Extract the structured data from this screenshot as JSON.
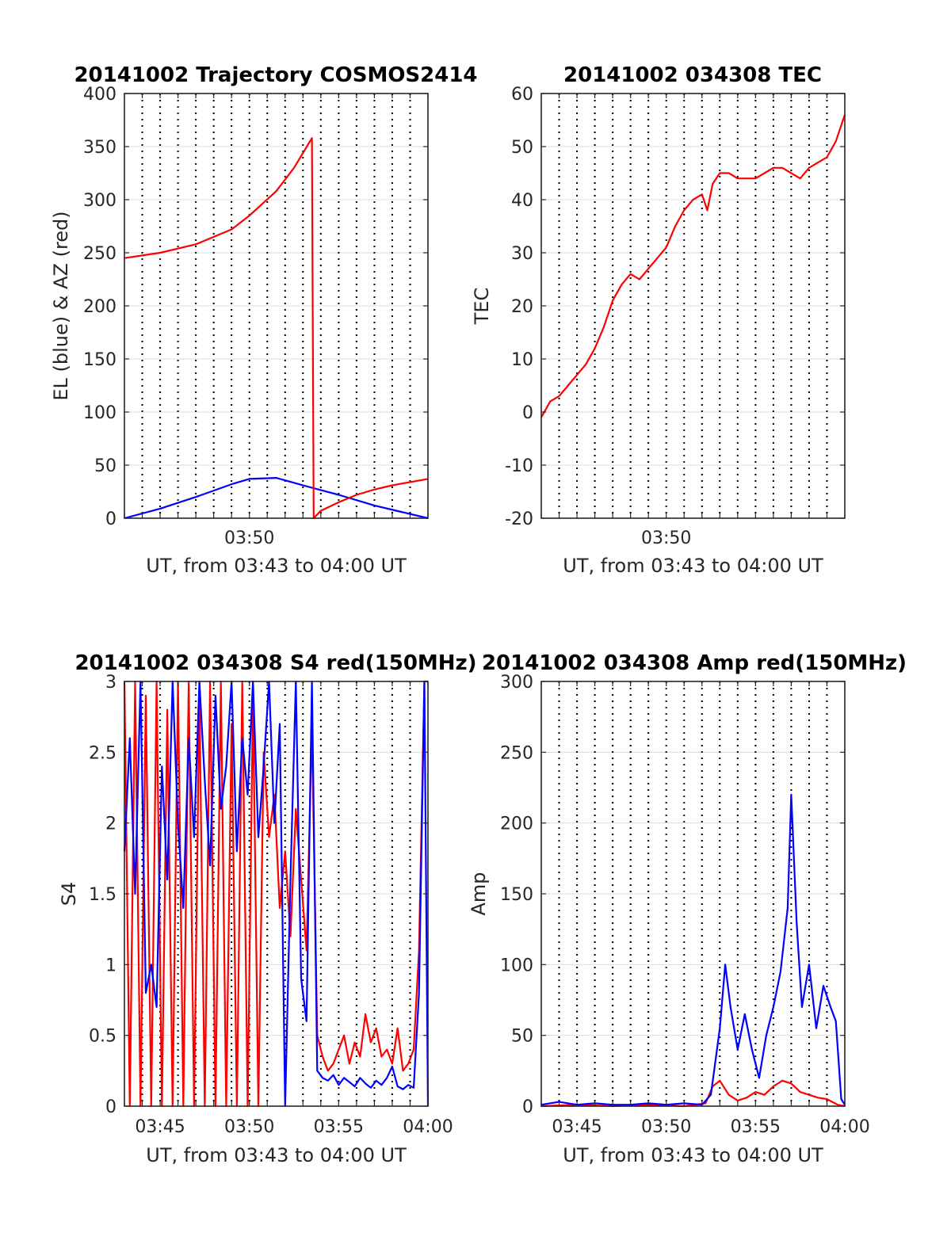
{
  "colors": {
    "el": "#0000ff",
    "az": "#ff0000",
    "tec": "#ff0000",
    "s4_red": "#ff0000",
    "s4_blue": "#0000ff",
    "amp_red": "#ff0000",
    "amp_blue": "#0000ff",
    "axis": "#262626",
    "grid": "#dcdcdc"
  },
  "chart_data": [
    {
      "id": "trajectory",
      "type": "line",
      "title": "20141002 Trajectory COSMOS2414",
      "xlabel": "UT, from 03:43 to 04:00 UT",
      "ylabel": "EL (blue) & AZ (red)",
      "xlim": [
        0,
        17
      ],
      "ylim": [
        0,
        400
      ],
      "xticks": [
        7
      ],
      "xticklabels": [
        "03:50"
      ],
      "yticks": [
        0,
        50,
        100,
        150,
        200,
        250,
        300,
        350,
        400
      ],
      "grid": "dotted vertical minute lines, light horizontal lines",
      "series": [
        {
          "key": "el",
          "x": [
            0,
            2,
            4,
            6,
            7,
            8.5,
            10,
            12,
            14,
            15.5,
            17
          ],
          "y": [
            0,
            9,
            20,
            32,
            37,
            38,
            31,
            22,
            12,
            6,
            0
          ]
        },
        {
          "key": "az",
          "x": [
            0,
            2,
            4,
            6,
            7,
            8.5,
            9.5,
            10.5,
            10.6,
            11,
            12,
            13,
            14,
            15,
            16,
            17
          ],
          "y": [
            245,
            250,
            258,
            272,
            285,
            308,
            330,
            358,
            0,
            7,
            15,
            22,
            27,
            31,
            34,
            37
          ]
        }
      ]
    },
    {
      "id": "tec",
      "type": "line",
      "title": "20141002 034308 TEC",
      "xlabel": "UT, from 03:43 to 04:00 UT",
      "ylabel": "TEC",
      "xlim": [
        0,
        17
      ],
      "ylim": [
        -20,
        60
      ],
      "xticks": [
        7
      ],
      "xticklabels": [
        "03:50"
      ],
      "yticks": [
        -20,
        -10,
        0,
        10,
        20,
        30,
        40,
        50,
        60
      ],
      "series": [
        {
          "key": "tec",
          "x": [
            0,
            0.5,
            1,
            1.5,
            2,
            2.5,
            3,
            3.5,
            4,
            4.5,
            5,
            5.5,
            6,
            6.5,
            7,
            7.5,
            8,
            8.5,
            9,
            9.3,
            9.6,
            10,
            10.5,
            11,
            11.5,
            12,
            12.5,
            13,
            13.5,
            14,
            14.5,
            15,
            15.5,
            16,
            16.5,
            17
          ],
          "y": [
            -1,
            2,
            3,
            5,
            7,
            9,
            12,
            16,
            21,
            24,
            26,
            25,
            27,
            29,
            31,
            35,
            38,
            40,
            41,
            38,
            43,
            45,
            45,
            44,
            44,
            44,
            45,
            46,
            46,
            45,
            44,
            46,
            47,
            48,
            51,
            56
          ]
        }
      ]
    },
    {
      "id": "s4",
      "type": "line",
      "title": "20141002 034308 S4 red(150MHz)",
      "xlabel": "UT, from 03:43 to 04:00 UT",
      "ylabel": "S4",
      "xlim": [
        0,
        17
      ],
      "ylim": [
        0,
        3
      ],
      "xticks": [
        2,
        7,
        12,
        17
      ],
      "xticklabels": [
        "03:45",
        "03:50",
        "03:55",
        "04:00"
      ],
      "yticks": [
        0,
        0.5,
        1,
        1.5,
        2,
        2.5,
        3
      ],
      "series": [
        {
          "key": "s4_red",
          "x": [
            0,
            0.3,
            0.6,
            0.9,
            1.2,
            1.5,
            1.8,
            2.1,
            2.4,
            2.7,
            3.0,
            3.3,
            3.6,
            3.9,
            4.2,
            4.5,
            4.8,
            5.1,
            5.4,
            5.7,
            6.0,
            6.3,
            6.6,
            6.9,
            7.2,
            7.5,
            7.8,
            8.1,
            8.4,
            8.7,
            9.0,
            9.3,
            9.6,
            9.9,
            10.2,
            10.5,
            10.8,
            11.1,
            11.4,
            11.7,
            12.0,
            12.3,
            12.6,
            12.9,
            13.2,
            13.5,
            13.8,
            14.1,
            14.4,
            14.7,
            15.0,
            15.3,
            15.6,
            15.9,
            16.2,
            16.5,
            16.8,
            17.0
          ],
          "y": [
            3,
            0,
            3,
            0,
            2.9,
            0,
            3,
            0,
            2.8,
            0,
            3,
            0,
            3,
            0,
            2.9,
            0,
            3,
            0,
            3,
            0,
            2.7,
            0,
            3,
            0,
            2.9,
            0,
            2.5,
            1.9,
            2.2,
            1.4,
            1.8,
            1.2,
            2.1,
            1.6,
            1.1,
            2.7,
            0.5,
            0.35,
            0.25,
            0.3,
            0.4,
            0.5,
            0.3,
            0.45,
            0.35,
            0.65,
            0.45,
            0.55,
            0.35,
            0.4,
            0.3,
            0.55,
            0.25,
            0.3,
            0.4,
            1.1,
            3,
            3
          ]
        },
        {
          "key": "s4_blue",
          "x": [
            0,
            0.3,
            0.6,
            0.9,
            1.2,
            1.5,
            1.8,
            2.1,
            2.4,
            2.7,
            3.0,
            3.3,
            3.6,
            3.9,
            4.2,
            4.5,
            4.8,
            5.1,
            5.4,
            5.7,
            6.0,
            6.3,
            6.6,
            6.9,
            7.2,
            7.5,
            7.8,
            8.1,
            8.4,
            8.7,
            9.0,
            9.3,
            9.6,
            9.9,
            10.2,
            10.5,
            10.8,
            11.1,
            11.4,
            11.7,
            12.0,
            12.3,
            12.6,
            12.9,
            13.2,
            13.5,
            13.8,
            14.1,
            14.4,
            14.7,
            15.0,
            15.3,
            15.6,
            15.9,
            16.2,
            16.5,
            16.8,
            17.0
          ],
          "y": [
            1.8,
            2.6,
            1.5,
            3,
            0.8,
            1.0,
            0.7,
            2.4,
            1.6,
            3,
            2.0,
            1.4,
            2.6,
            1.9,
            3,
            2.3,
            1.7,
            2.9,
            2.1,
            2.4,
            3,
            1.8,
            2.6,
            2.2,
            3,
            1.9,
            2.4,
            3,
            2.0,
            2.7,
            0,
            1.6,
            3,
            0.9,
            0.6,
            3,
            0.25,
            0.2,
            0.18,
            0.22,
            0.15,
            0.2,
            0.17,
            0.14,
            0.2,
            0.16,
            0.13,
            0.18,
            0.15,
            0.2,
            0.28,
            0.14,
            0.12,
            0.15,
            0.13,
            0.8,
            3,
            0
          ]
        }
      ]
    },
    {
      "id": "amp",
      "type": "line",
      "title": "20141002 034308 Amp red(150MHz)",
      "xlabel": "UT, from 03:43 to 04:00 UT",
      "ylabel": "Amp",
      "xlim": [
        0,
        17
      ],
      "ylim": [
        0,
        300
      ],
      "xticks": [
        2,
        7,
        12,
        17
      ],
      "xticklabels": [
        "03:45",
        "03:50",
        "03:55",
        "04:00"
      ],
      "yticks": [
        0,
        50,
        100,
        150,
        200,
        250,
        300
      ],
      "series": [
        {
          "key": "amp_red",
          "x": [
            0,
            2,
            4,
            6,
            8,
            9.2,
            9.6,
            10,
            10.5,
            11,
            11.5,
            12,
            12.5,
            13,
            13.5,
            14,
            14.5,
            15,
            15.5,
            16,
            16.3,
            16.6,
            17
          ],
          "y": [
            0,
            1,
            0,
            1,
            0,
            2,
            14,
            18,
            8,
            4,
            6,
            10,
            8,
            14,
            18,
            16,
            10,
            8,
            6,
            5,
            3,
            1,
            0
          ]
        },
        {
          "key": "amp_blue",
          "x": [
            0,
            1,
            2,
            3,
            4,
            5,
            6,
            7,
            8,
            9,
            9.5,
            10,
            10.3,
            10.6,
            11,
            11.4,
            11.8,
            12.2,
            12.6,
            13,
            13.4,
            13.8,
            14.0,
            14.3,
            14.6,
            15,
            15.4,
            15.8,
            16.2,
            16.5,
            16.8,
            17
          ],
          "y": [
            1,
            3,
            1,
            2,
            1,
            1,
            2,
            1,
            2,
            1,
            8,
            55,
            100,
            70,
            40,
            65,
            40,
            20,
            50,
            70,
            95,
            140,
            220,
            130,
            70,
            100,
            55,
            85,
            70,
            60,
            5,
            1
          ]
        }
      ]
    }
  ]
}
